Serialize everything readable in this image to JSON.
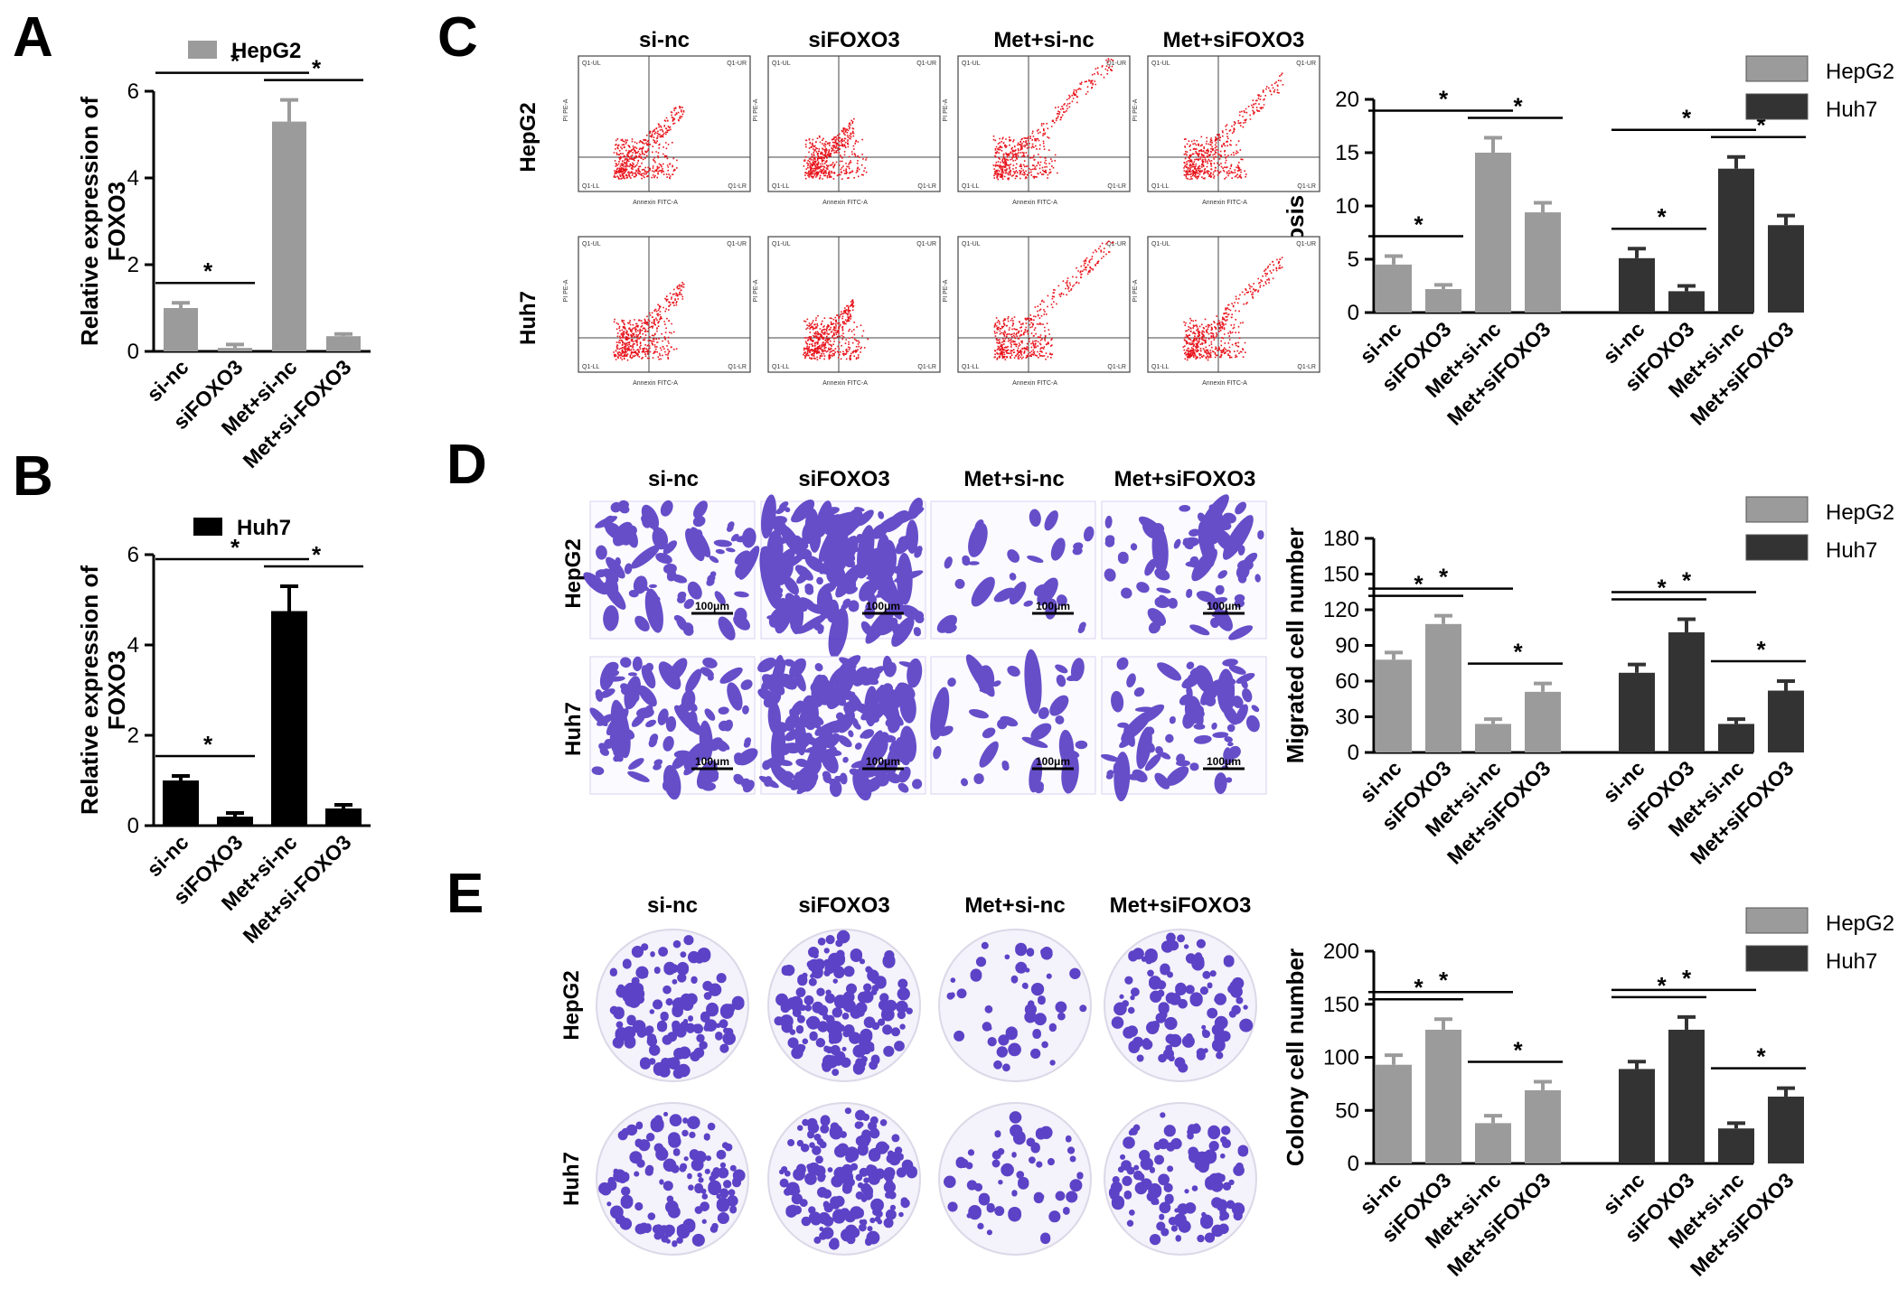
{
  "panels": {
    "A": "A",
    "B": "B",
    "C": "C",
    "D": "D",
    "E": "E"
  },
  "colors": {
    "hepg2": "#9b9b9b",
    "huh7": "#333333",
    "huh7_B": "#000000",
    "flow_dot": "#e8141c",
    "stain": "#4b2fc0"
  },
  "column_headers": {
    "C": [
      "si-nc",
      "siFOXO3",
      "Met+si-nc",
      "Met+siFOXO3"
    ],
    "D": [
      "si-nc",
      "siFOXO3",
      "Met+si-nc",
      "Met+siFOXO3"
    ],
    "E": [
      "si-nc",
      "siFOXO3",
      "Met+si-nc",
      "Met+siFOXO3"
    ]
  },
  "row_headers": [
    "HepG2",
    "Huh7"
  ],
  "flow_labels": {
    "ul": "Q1-UL",
    "ur": "Q1-UR",
    "ll": "Q1-LL",
    "lr": "Q1-LR",
    "x": "Annexin FITC-A",
    "y": "PI PE-A"
  },
  "scale_bar": "100μm",
  "chart_data": [
    {
      "id": "A",
      "type": "bar",
      "categories": [
        "si-nc",
        "siFOXO3",
        "Met+si-nc",
        "Met+si-FOXO3"
      ],
      "series": [
        {
          "name": "HepG2",
          "values": [
            1.0,
            0.08,
            5.3,
            0.35
          ],
          "errors": [
            0.12,
            0.08,
            0.5,
            0.05
          ]
        }
      ],
      "ylabel": "Relative expression of FOXO3",
      "ylim": [
        0,
        6
      ],
      "yticks": [
        0,
        2,
        4,
        6
      ],
      "significance": [
        {
          "from": 0,
          "to": 1,
          "label": "*"
        },
        {
          "from": 0,
          "to": 2,
          "label": "*"
        },
        {
          "from": 2,
          "to": 3,
          "label": "*"
        }
      ]
    },
    {
      "id": "B",
      "type": "bar",
      "categories": [
        "si-nc",
        "siFOXO3",
        "Met+si-nc",
        "Met+si-FOXO3"
      ],
      "series": [
        {
          "name": "Huh7",
          "values": [
            1.0,
            0.2,
            4.75,
            0.38
          ],
          "errors": [
            0.1,
            0.08,
            0.55,
            0.08
          ]
        }
      ],
      "ylabel": "Relative expression of FOXO3",
      "ylim": [
        0,
        6
      ],
      "yticks": [
        0,
        2,
        4,
        6
      ],
      "significance": [
        {
          "from": 0,
          "to": 1,
          "label": "*"
        },
        {
          "from": 0,
          "to": 2,
          "label": "*"
        },
        {
          "from": 2,
          "to": 3,
          "label": "*"
        }
      ]
    },
    {
      "id": "C",
      "type": "bar",
      "categories": [
        "si-nc",
        "siFOXO3",
        "Met+si-nc",
        "Met+siFOXO3"
      ],
      "series": [
        {
          "name": "HepG2",
          "values": [
            4.5,
            2.2,
            15.0,
            9.4
          ],
          "errors": [
            0.8,
            0.4,
            1.4,
            0.9
          ]
        },
        {
          "name": "Huh7",
          "values": [
            5.1,
            2.0,
            13.5,
            8.2
          ],
          "errors": [
            0.9,
            0.5,
            1.1,
            0.9
          ]
        }
      ],
      "ylabel": "Apoptosis rate (%)",
      "ylim": [
        0,
        20
      ],
      "yticks": [
        0,
        5,
        10,
        15,
        20
      ],
      "legend": "top-right",
      "significance": [
        {
          "series": 0,
          "from": 0,
          "to": 1,
          "label": "*"
        },
        {
          "series": 0,
          "from": 0,
          "to": 2,
          "label": "*"
        },
        {
          "series": 0,
          "from": 2,
          "to": 3,
          "label": "*"
        },
        {
          "series": 1,
          "from": 0,
          "to": 1,
          "label": "*"
        },
        {
          "series": 1,
          "from": 0,
          "to": 2,
          "label": "*"
        },
        {
          "series": 1,
          "from": 2,
          "to": 3,
          "label": "*"
        }
      ]
    },
    {
      "id": "D",
      "type": "bar",
      "categories": [
        "si-nc",
        "siFOXO3",
        "Met+si-nc",
        "Met+siFOXO3"
      ],
      "series": [
        {
          "name": "HepG2",
          "values": [
            78,
            108,
            24,
            51
          ],
          "errors": [
            6,
            7,
            4,
            7
          ]
        },
        {
          "name": "Huh7",
          "values": [
            67,
            101,
            24,
            52
          ],
          "errors": [
            7,
            11,
            4,
            8
          ]
        }
      ],
      "ylabel": "Migrated cell number",
      "ylim": [
        0,
        180
      ],
      "yticks": [
        0,
        30,
        60,
        90,
        120,
        150,
        180
      ],
      "legend": "top-right",
      "significance": [
        {
          "series": 0,
          "from": 0,
          "to": 1,
          "label": "*"
        },
        {
          "series": 0,
          "from": 0,
          "to": 2,
          "label": "*"
        },
        {
          "series": 0,
          "from": 2,
          "to": 3,
          "label": "*"
        },
        {
          "series": 1,
          "from": 0,
          "to": 1,
          "label": "*"
        },
        {
          "series": 1,
          "from": 0,
          "to": 2,
          "label": "*"
        },
        {
          "series": 1,
          "from": 2,
          "to": 3,
          "label": "*"
        }
      ]
    },
    {
      "id": "E",
      "type": "bar",
      "categories": [
        "si-nc",
        "siFOXO3",
        "Met+si-nc",
        "Met+siFOXO3"
      ],
      "series": [
        {
          "name": "HepG2",
          "values": [
            93,
            126,
            38,
            69
          ],
          "errors": [
            9,
            10,
            7,
            8
          ]
        },
        {
          "name": "Huh7",
          "values": [
            89,
            126,
            33,
            63
          ],
          "errors": [
            7,
            12,
            5,
            8
          ]
        }
      ],
      "ylabel": "Colony cell number",
      "ylim": [
        0,
        200
      ],
      "yticks": [
        0,
        50,
        100,
        150,
        200
      ],
      "legend": "top-right",
      "significance": [
        {
          "series": 0,
          "from": 0,
          "to": 1,
          "label": "*"
        },
        {
          "series": 0,
          "from": 0,
          "to": 2,
          "label": "*"
        },
        {
          "series": 0,
          "from": 2,
          "to": 3,
          "label": "*"
        },
        {
          "series": 1,
          "from": 0,
          "to": 1,
          "label": "*"
        },
        {
          "series": 1,
          "from": 0,
          "to": 2,
          "label": "*"
        },
        {
          "series": 1,
          "from": 2,
          "to": 3,
          "label": "*"
        }
      ]
    }
  ]
}
